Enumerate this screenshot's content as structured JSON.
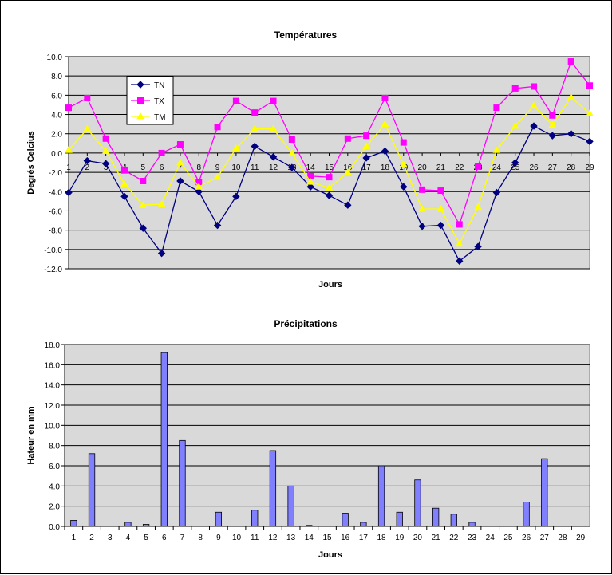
{
  "chart_data": [
    {
      "type": "line",
      "title": "Températures",
      "xlabel": "Jours",
      "ylabel": "Degrés Celcius",
      "ylim": [
        -12,
        10
      ],
      "y_step": 2,
      "grid": true,
      "plot_background": "#d9d9d9",
      "legend_position": "top-left",
      "categories": [
        "1",
        "2",
        "3",
        "4",
        "5",
        "6",
        "7",
        "8",
        "9",
        "10",
        "11",
        "12",
        "13",
        "14",
        "15",
        "16",
        "17",
        "18",
        "19",
        "20",
        "21",
        "22",
        "23",
        "24",
        "25",
        "26",
        "27",
        "28",
        "29"
      ],
      "y_tick_labels": [
        "10.0",
        "8.0",
        "6.0",
        "4.0",
        "2.0",
        "0.0",
        "-2.0",
        "-4.0",
        "-6.0",
        "-8.0",
        "-10.0",
        "-12.0"
      ],
      "series": [
        {
          "name": "TN",
          "color": "#000080",
          "marker": "diamond",
          "values": [
            -4.1,
            -0.8,
            -1.1,
            -4.5,
            -7.8,
            -10.4,
            -2.9,
            -4.0,
            -7.5,
            -4.5,
            0.7,
            -0.4,
            -1.5,
            -3.5,
            -4.4,
            -5.4,
            -0.5,
            0.2,
            -3.5,
            -7.6,
            -7.5,
            -11.2,
            -9.7,
            -4.1,
            -1.0,
            2.8,
            1.8,
            2.0,
            1.2
          ]
        },
        {
          "name": "TX",
          "color": "#ff00ff",
          "marker": "square",
          "values": [
            4.7,
            5.7,
            1.5,
            -1.8,
            -2.9,
            0.0,
            0.9,
            -3.0,
            2.7,
            5.4,
            4.2,
            5.4,
            1.4,
            -2.4,
            -2.5,
            1.5,
            1.8,
            5.7,
            1.1,
            -3.8,
            -3.9,
            -7.4,
            -1.4,
            4.7,
            6.7,
            6.9,
            3.9,
            9.5,
            7.0
          ]
        },
        {
          "name": "TM",
          "color": "#ffff00",
          "marker": "triangle",
          "values": [
            0.3,
            2.5,
            0.2,
            -3.2,
            -5.4,
            -5.3,
            -1.0,
            -3.5,
            -2.5,
            0.5,
            2.5,
            2.5,
            0.0,
            -3.0,
            -3.6,
            -2.0,
            0.7,
            3.0,
            -1.2,
            -5.8,
            -5.8,
            -9.4,
            -5.6,
            0.3,
            2.8,
            4.9,
            2.9,
            5.8,
            4.1
          ]
        }
      ]
    },
    {
      "type": "bar",
      "title": "Précipitations",
      "xlabel": "Jours",
      "ylabel": "Hateur en mm",
      "ylim": [
        0,
        18
      ],
      "y_step": 2,
      "grid": true,
      "plot_background": "#d9d9d9",
      "bar_color": "#8080ff",
      "categories": [
        "1",
        "2",
        "3",
        "4",
        "5",
        "6",
        "7",
        "8",
        "9",
        "10",
        "11",
        "12",
        "13",
        "14",
        "15",
        "16",
        "17",
        "18",
        "19",
        "20",
        "21",
        "22",
        "23",
        "24",
        "25",
        "26",
        "27",
        "28",
        "29"
      ],
      "y_tick_labels": [
        "18.0",
        "16.0",
        "14.0",
        "12.0",
        "10.0",
        "8.0",
        "6.0",
        "4.0",
        "2.0",
        "0.0"
      ],
      "values": [
        0.6,
        7.2,
        0.0,
        0.4,
        0.2,
        17.2,
        8.5,
        0.0,
        1.4,
        0.0,
        1.6,
        7.5,
        4.0,
        0.1,
        0.0,
        1.3,
        0.4,
        6.0,
        1.4,
        4.6,
        1.8,
        1.2,
        0.4,
        0.0,
        0.0,
        2.4,
        6.7,
        0.0,
        0.0
      ]
    }
  ]
}
